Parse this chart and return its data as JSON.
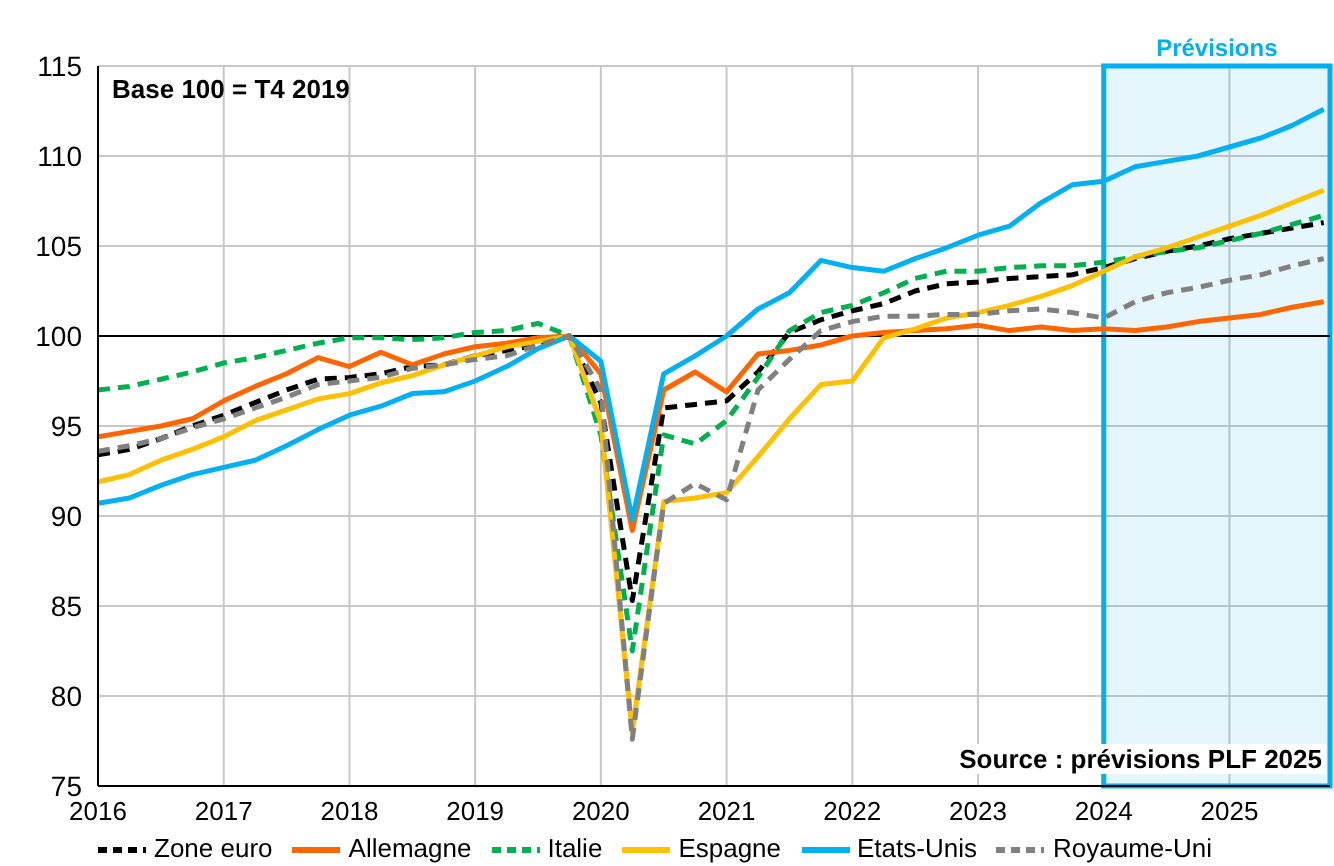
{
  "chart_data": {
    "type": "line",
    "x": [
      2016,
      2016.25,
      2016.5,
      2016.75,
      2017,
      2017.25,
      2017.5,
      2017.75,
      2018,
      2018.25,
      2018.5,
      2018.75,
      2019,
      2019.25,
      2019.5,
      2019.75,
      2020,
      2020.25,
      2020.5,
      2020.75,
      2021,
      2021.25,
      2021.5,
      2021.75,
      2022,
      2022.25,
      2022.5,
      2022.75,
      2023,
      2023.25,
      2023.5,
      2023.75,
      2024,
      2024.25,
      2024.5,
      2024.75,
      2025,
      2025.25,
      2025.5,
      2025.75
    ],
    "series": [
      {
        "name": "Zone euro",
        "color": "#000000",
        "line_style": "dashed",
        "values": [
          93.4,
          93.7,
          94.3,
          95.0,
          95.6,
          96.3,
          97.0,
          97.6,
          97.7,
          97.9,
          98.3,
          98.4,
          98.9,
          99.2,
          99.5,
          100,
          96.3,
          85.3,
          96.0,
          96.2,
          96.4,
          98.0,
          100.2,
          100.9,
          101.4,
          101.8,
          102.5,
          102.9,
          103.0,
          103.2,
          103.3,
          103.4,
          103.8,
          104.3,
          104.7,
          105.0,
          105.4,
          105.7,
          106.0,
          106.3
        ]
      },
      {
        "name": "Allemagne",
        "color": "#ff6600",
        "line_style": "solid",
        "values": [
          94.4,
          94.7,
          95.0,
          95.4,
          96.4,
          97.2,
          97.9,
          98.8,
          98.3,
          99.1,
          98.4,
          99.0,
          99.4,
          99.6,
          99.9,
          100,
          97.9,
          89.2,
          97.0,
          98.0,
          96.9,
          99.0,
          99.2,
          99.5,
          100.0,
          100.2,
          100.3,
          100.4,
          100.6,
          100.3,
          100.5,
          100.3,
          100.4,
          100.3,
          100.5,
          100.8,
          101.0,
          101.2,
          101.6,
          101.9
        ]
      },
      {
        "name": "Italie",
        "color": "#00b050",
        "line_style": "dashed",
        "values": [
          97.0,
          97.2,
          97.6,
          98.0,
          98.5,
          98.8,
          99.2,
          99.6,
          99.9,
          99.9,
          99.8,
          99.9,
          100.2,
          100.3,
          100.7,
          100,
          94.5,
          82.5,
          94.5,
          94.0,
          95.3,
          97.7,
          100.3,
          101.3,
          101.7,
          102.4,
          103.2,
          103.6,
          103.6,
          103.8,
          103.9,
          103.9,
          104.1,
          104.4,
          104.7,
          104.9,
          105.3,
          105.7,
          106.2,
          106.7
        ]
      },
      {
        "name": "Espagne",
        "color": "#ffc000",
        "line_style": "solid",
        "values": [
          91.9,
          92.3,
          93.1,
          93.7,
          94.4,
          95.3,
          95.9,
          96.5,
          96.8,
          97.4,
          97.8,
          98.4,
          98.9,
          99.4,
          99.7,
          100,
          95.2,
          78.0,
          90.8,
          91.0,
          91.3,
          93.3,
          95.4,
          97.3,
          97.5,
          99.9,
          100.4,
          101.0,
          101.3,
          101.7,
          102.2,
          102.8,
          103.6,
          104.4,
          104.9,
          105.5,
          106.1,
          106.7,
          107.4,
          108.1
        ]
      },
      {
        "name": "Etats-Unis",
        "color": "#00b0f0",
        "line_style": "solid",
        "values": [
          90.7,
          91.0,
          91.7,
          92.3,
          92.7,
          93.1,
          93.9,
          94.8,
          95.6,
          96.1,
          96.8,
          96.9,
          97.5,
          98.3,
          99.3,
          100,
          98.6,
          89.8,
          97.9,
          98.9,
          100.0,
          101.5,
          102.4,
          104.2,
          103.8,
          103.6,
          104.3,
          104.9,
          105.6,
          106.1,
          107.4,
          108.4,
          108.6,
          109.4,
          109.7,
          110.0,
          110.5,
          111.0,
          111.7,
          112.6
        ]
      },
      {
        "name": "Royaume-Uni",
        "color": "#808080",
        "line_style": "dashed",
        "values": [
          93.6,
          93.9,
          94.3,
          94.9,
          95.4,
          96.0,
          96.6,
          97.3,
          97.5,
          97.7,
          98.2,
          98.4,
          98.7,
          98.9,
          99.5,
          100,
          97.0,
          77.6,
          90.7,
          91.8,
          90.9,
          97.0,
          98.7,
          100.3,
          100.8,
          101.1,
          101.1,
          101.2,
          101.2,
          101.4,
          101.5,
          101.3,
          101.0,
          101.9,
          102.4,
          102.7,
          103.1,
          103.4,
          103.9,
          104.3
        ]
      }
    ],
    "xlim": [
      2016,
      2025.8
    ],
    "xticks": [
      2016,
      2017,
      2018,
      2019,
      2020,
      2021,
      2022,
      2023,
      2024,
      2025
    ],
    "ylim": [
      75,
      115
    ],
    "yticks": [
      75,
      80,
      85,
      90,
      95,
      100,
      105,
      110,
      115
    ],
    "ref_lines": [
      {
        "axis": "y",
        "value": 100,
        "color": "#000000"
      }
    ],
    "bands": [
      {
        "axis": "x",
        "from": 2024,
        "to": 2025.8,
        "label": "Prévisions",
        "color": "#00b0f0"
      }
    ],
    "annotations": [
      "Base 100 = T4 2019",
      "Source : prévisions PLF 2025"
    ],
    "grid": true,
    "legend": "bottom",
    "marker": "none"
  }
}
